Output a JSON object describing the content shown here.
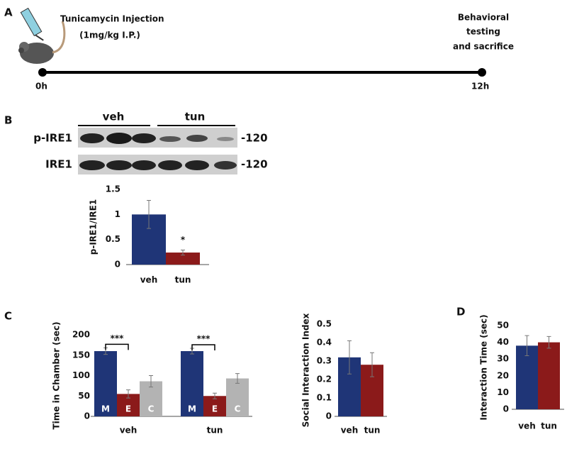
{
  "panel_labels": [
    "A",
    "B",
    "C",
    "D"
  ],
  "timeline": {
    "injection": "Tunicamycin Injection",
    "dose": "(1mg/kg I.P.)",
    "end_lines": [
      "Behavioral",
      "testing",
      "and sacrifice"
    ],
    "start": "0h",
    "end": "12h"
  },
  "blot": {
    "groups": [
      "veh",
      "tun"
    ],
    "rows": [
      "p-IRE1",
      "IRE1"
    ],
    "sizes": [
      "-120",
      "-120"
    ]
  },
  "chart_data": [
    {
      "type": "bar",
      "ylabel": "p-IRE1/IRE1",
      "categories": [
        "veh",
        "tun"
      ],
      "values": [
        1,
        0.24
      ],
      "errors": [
        0.28,
        0.05
      ],
      "colors": [
        "#1f3577",
        "#8b1a1a"
      ],
      "ylim": [
        0,
        1.5
      ],
      "yticks": [
        0,
        0.5,
        1,
        1.5
      ],
      "annotations": [
        "*"
      ]
    },
    {
      "type": "bar",
      "ylabel": "Time in Chamber (sec)",
      "categories": [
        "veh",
        "tun"
      ],
      "series": [
        {
          "name": "M",
          "color": "#1f3577",
          "values": [
            160,
            160
          ],
          "errors": [
            8,
            7
          ]
        },
        {
          "name": "E",
          "color": "#8b1a1a",
          "values": [
            55,
            50
          ],
          "errors": [
            10,
            7
          ]
        },
        {
          "name": "C",
          "color": "#b3b3b3",
          "values": [
            86,
            93
          ],
          "errors": [
            14,
            12
          ]
        }
      ],
      "ylim": [
        0,
        200
      ],
      "yticks": [
        0,
        50,
        100,
        150,
        200
      ],
      "annotations": [
        "***",
        "***"
      ]
    },
    {
      "type": "bar",
      "ylabel": "Social Interaction Index",
      "categories": [
        "veh",
        "tun"
      ],
      "values": [
        0.32,
        0.28
      ],
      "errors": [
        0.09,
        0.065
      ],
      "colors": [
        "#1f3577",
        "#8b1a1a"
      ],
      "ylim": [
        0,
        0.5
      ],
      "yticks": [
        0,
        0.1,
        0.2,
        0.3,
        0.4,
        0.5
      ]
    },
    {
      "type": "bar",
      "ylabel": "Interaction Time (sec)",
      "categories": [
        "veh",
        "tun"
      ],
      "values": [
        38,
        40
      ],
      "errors": [
        6,
        3.5
      ],
      "colors": [
        "#1f3577",
        "#8b1a1a"
      ],
      "ylim": [
        0,
        50
      ],
      "yticks": [
        0,
        10,
        20,
        30,
        40,
        50
      ]
    }
  ]
}
